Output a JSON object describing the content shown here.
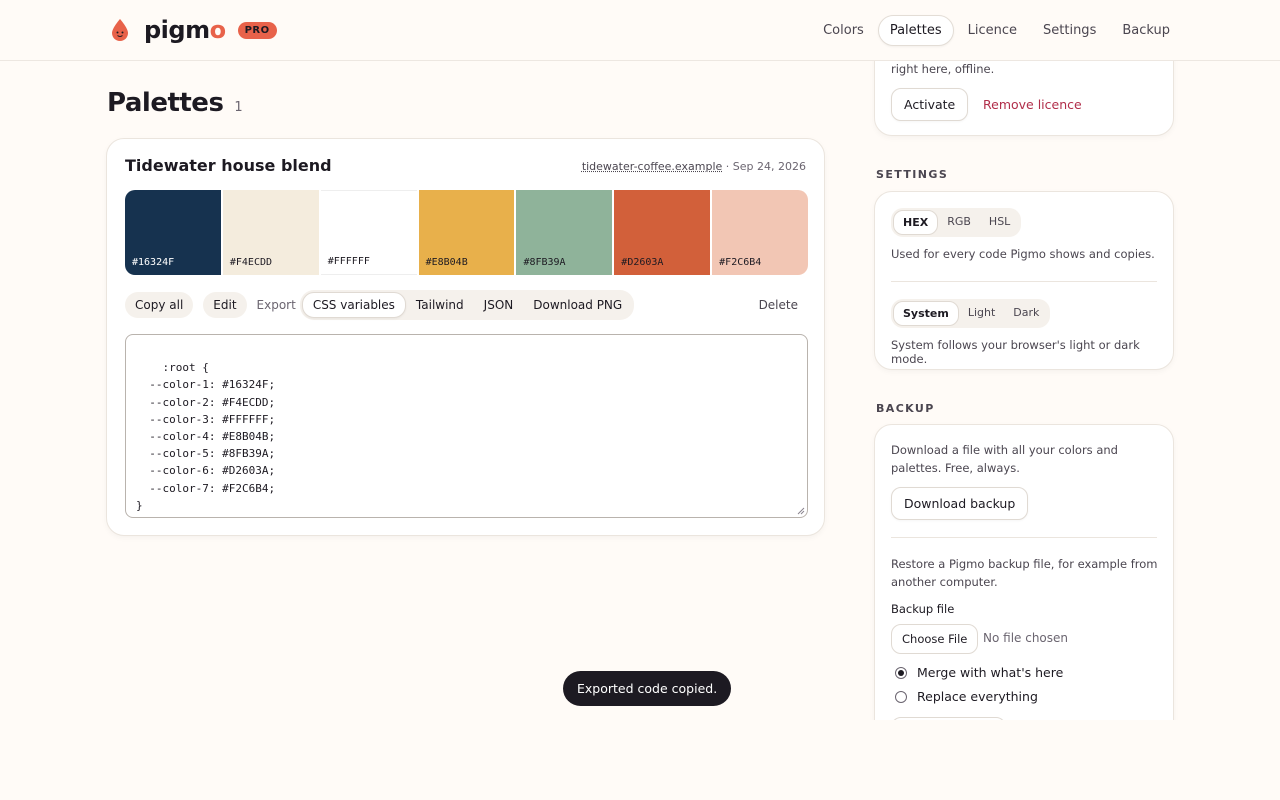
{
  "header": {
    "logo_text": "pigmo",
    "logo_text_main": "pigm",
    "logo_text_accent": "o",
    "badge": "PRO",
    "nav": [
      {
        "label": "Colors",
        "active": false
      },
      {
        "label": "Palettes",
        "active": true
      },
      {
        "label": "Licence",
        "active": false
      },
      {
        "label": "Settings",
        "active": false
      },
      {
        "label": "Backup",
        "active": false
      }
    ]
  },
  "main": {
    "title": "Palettes",
    "count": "1",
    "palette": {
      "name": "Tidewater house blend",
      "source": "tidewater-coffee.example",
      "date": "· Sep 24, 2026",
      "swatches": [
        {
          "hex": "#16324F",
          "text_color": "#ffffff"
        },
        {
          "hex": "#F4ECDD",
          "text_color": "#1d1a22"
        },
        {
          "hex": "#FFFFFF",
          "text_color": "#1d1a22"
        },
        {
          "hex": "#E8B04B",
          "text_color": "#1d1a22"
        },
        {
          "hex": "#8FB39A",
          "text_color": "#1d1a22"
        },
        {
          "hex": "#D2603A",
          "text_color": "#1d1a22"
        },
        {
          "hex": "#F2C6B4",
          "text_color": "#1d1a22"
        }
      ],
      "actions": {
        "copy_all": "Copy all",
        "edit": "Edit",
        "export_label": "Export",
        "export_options": [
          {
            "label": "CSS variables",
            "active": true
          },
          {
            "label": "Tailwind",
            "active": false
          },
          {
            "label": "JSON",
            "active": false
          },
          {
            "label": "Download PNG",
            "active": false
          }
        ],
        "delete": "Delete"
      },
      "code": ":root {\n  --color-1: #16324F;\n  --color-2: #F4ECDD;\n  --color-3: #FFFFFF;\n  --color-4: #E8B04B;\n  --color-5: #8FB39A;\n  --color-6: #D2603A;\n  --color-7: #F2C6B4;\n}"
    }
  },
  "licence": {
    "text": "right here, offline.",
    "activate": "Activate",
    "remove": "Remove licence"
  },
  "settings": {
    "section_title": "SETTINGS",
    "format_options": [
      {
        "label": "HEX",
        "active": true
      },
      {
        "label": "RGB",
        "active": false
      },
      {
        "label": "HSL",
        "active": false
      }
    ],
    "format_help": "Used for every code Pigmo shows and copies.",
    "theme_options": [
      {
        "label": "System",
        "active": true
      },
      {
        "label": "Light",
        "active": false
      },
      {
        "label": "Dark",
        "active": false
      }
    ],
    "theme_help": "System follows your browser's light or dark mode."
  },
  "backup": {
    "section_title": "BACKUP",
    "download_text": "Download a file with all your colors and palettes. Free, always.",
    "download_button": "Download backup",
    "restore_text": "Restore a Pigmo backup file, for example from another computer.",
    "file_label": "Backup file",
    "choose_file": "Choose File",
    "no_file": "No file chosen",
    "options": [
      {
        "label": "Merge with what's here",
        "checked": true
      },
      {
        "label": "Replace everything",
        "checked": false
      }
    ]
  },
  "toast": "Exported code copied.",
  "colors": {
    "accent": "#e8624a",
    "danger": "#b12e4a",
    "background": "#fffbf7"
  }
}
